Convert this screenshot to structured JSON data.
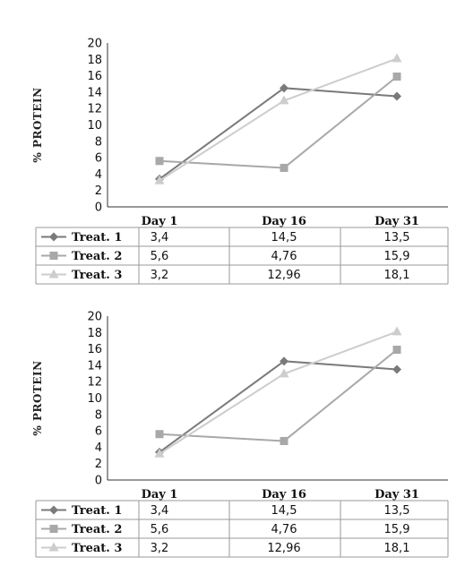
{
  "colors": {
    "treat1": "#7a7a7a",
    "treat2": "#a8a8a8",
    "treat3": "#cdcdcd",
    "axis": "#333333",
    "table_lines": "#9a9a9a"
  },
  "chart_data": [
    {
      "type": "line",
      "ylabel": "% PROTEIN",
      "ylim": [
        0,
        20
      ],
      "yticks": [
        0,
        2,
        4,
        6,
        8,
        10,
        12,
        14,
        16,
        18,
        20
      ],
      "grid": false,
      "legend": "data-table-left",
      "categories": [
        "Day 1",
        "Day 16",
        "Day 31"
      ],
      "series": [
        {
          "name": "Treat. 1",
          "marker": "diamond",
          "values": [
            3.4,
            14.5,
            13.5
          ],
          "labels": [
            "3,4",
            "14,5",
            "13,5"
          ]
        },
        {
          "name": "Treat. 2",
          "marker": "square",
          "values": [
            5.6,
            4.76,
            15.9
          ],
          "labels": [
            "5,6",
            "4,76",
            "15,9"
          ]
        },
        {
          "name": "Treat. 3",
          "marker": "triangle",
          "values": [
            3.2,
            12.96,
            18.1
          ],
          "labels": [
            "3,2",
            "12,96",
            "18,1"
          ]
        }
      ]
    },
    {
      "type": "line",
      "ylabel": "% PROTEIN",
      "ylim": [
        0,
        20
      ],
      "yticks": [
        0,
        2,
        4,
        6,
        8,
        10,
        12,
        14,
        16,
        18,
        20
      ],
      "grid": false,
      "legend": "data-table-left",
      "categories": [
        "Day 1",
        "Day 16",
        "Day 31"
      ],
      "series": [
        {
          "name": "Treat. 1",
          "marker": "diamond",
          "values": [
            3.4,
            14.5,
            13.5
          ],
          "labels": [
            "3,4",
            "14,5",
            "13,5"
          ]
        },
        {
          "name": "Treat. 2",
          "marker": "square",
          "values": [
            5.6,
            4.76,
            15.9
          ],
          "labels": [
            "5,6",
            "4,76",
            "15,9"
          ]
        },
        {
          "name": "Treat. 3",
          "marker": "triangle",
          "values": [
            3.2,
            12.96,
            18.1
          ],
          "labels": [
            "3,2",
            "12,96",
            "18,1"
          ]
        }
      ]
    }
  ]
}
